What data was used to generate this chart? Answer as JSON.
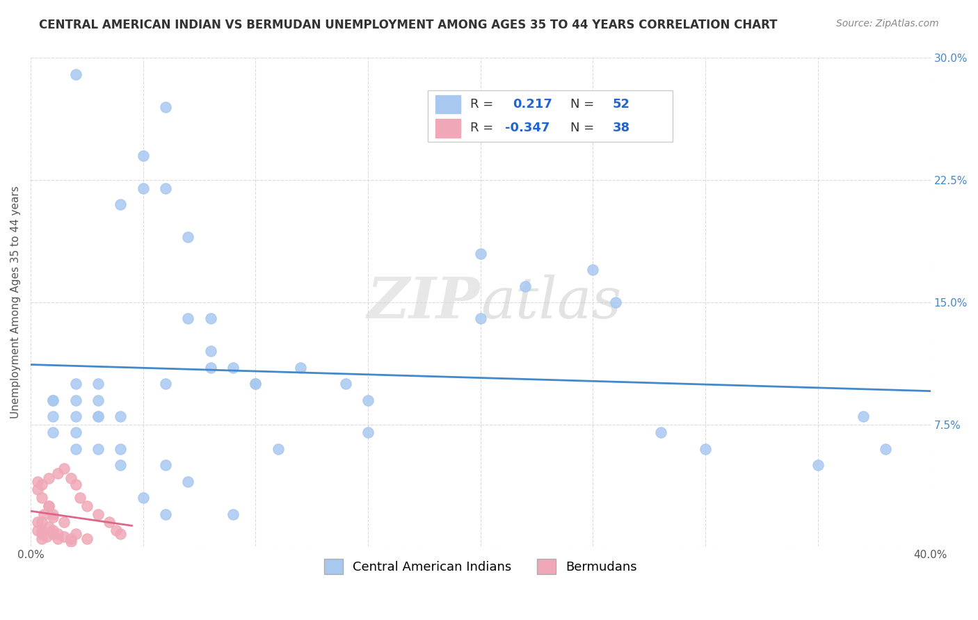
{
  "title": "CENTRAL AMERICAN INDIAN VS BERMUDAN UNEMPLOYMENT AMONG AGES 35 TO 44 YEARS CORRELATION CHART",
  "source": "Source: ZipAtlas.com",
  "ylabel": "Unemployment Among Ages 35 to 44 years",
  "xlim": [
    0.0,
    0.4
  ],
  "ylim": [
    0.0,
    0.3
  ],
  "xticks": [
    0.0,
    0.05,
    0.1,
    0.15,
    0.2,
    0.25,
    0.3,
    0.35,
    0.4
  ],
  "yticks": [
    0.0,
    0.075,
    0.15,
    0.225,
    0.3
  ],
  "xticklabels": [
    "0.0%",
    "",
    "",
    "",
    "",
    "",
    "",
    "",
    "40.0%"
  ],
  "yticklabels": [
    "",
    "7.5%",
    "15.0%",
    "22.5%",
    "30.0%"
  ],
  "blue_color": "#a8c8f0",
  "pink_color": "#f0a8b8",
  "blue_line_color": "#4488cc",
  "pink_line_color": "#dd6688",
  "watermark_zip": "ZIP",
  "watermark_atlas": "atlas",
  "blue_R": 0.217,
  "blue_N": 52,
  "pink_R": -0.347,
  "pink_N": 38,
  "blue_scatter_x": [
    0.02,
    0.05,
    0.04,
    0.05,
    0.06,
    0.07,
    0.08,
    0.08,
    0.09,
    0.06,
    0.03,
    0.03,
    0.04,
    0.02,
    0.01,
    0.01,
    0.02,
    0.03,
    0.03,
    0.02,
    0.01,
    0.01,
    0.02,
    0.02,
    0.03,
    0.04,
    0.04,
    0.06,
    0.07,
    0.08,
    0.09,
    0.1,
    0.12,
    0.14,
    0.15,
    0.2,
    0.25,
    0.28,
    0.3,
    0.35,
    0.38,
    0.37,
    0.26,
    0.1,
    0.11,
    0.06,
    0.07,
    0.05,
    0.06,
    0.15,
    0.22,
    0.2
  ],
  "blue_scatter_y": [
    0.29,
    0.24,
    0.21,
    0.22,
    0.22,
    0.14,
    0.14,
    0.12,
    0.11,
    0.1,
    0.1,
    0.09,
    0.08,
    0.09,
    0.09,
    0.09,
    0.1,
    0.08,
    0.08,
    0.08,
    0.08,
    0.07,
    0.07,
    0.06,
    0.06,
    0.06,
    0.05,
    0.27,
    0.19,
    0.11,
    0.02,
    0.1,
    0.11,
    0.1,
    0.09,
    0.14,
    0.17,
    0.07,
    0.06,
    0.05,
    0.06,
    0.08,
    0.15,
    0.1,
    0.06,
    0.05,
    0.04,
    0.03,
    0.02,
    0.07,
    0.16,
    0.18
  ],
  "pink_scatter_x": [
    0.005,
    0.005,
    0.005,
    0.008,
    0.01,
    0.012,
    0.01,
    0.008,
    0.006,
    0.003,
    0.003,
    0.005,
    0.007,
    0.01,
    0.012,
    0.015,
    0.018,
    0.02,
    0.015,
    0.01,
    0.008,
    0.005,
    0.003,
    0.003,
    0.005,
    0.008,
    0.012,
    0.015,
    0.018,
    0.02,
    0.022,
    0.025,
    0.03,
    0.035,
    0.038,
    0.04,
    0.025,
    0.018
  ],
  "pink_scatter_y": [
    0.005,
    0.01,
    0.015,
    0.012,
    0.008,
    0.005,
    0.018,
    0.025,
    0.02,
    0.015,
    0.01,
    0.008,
    0.006,
    0.01,
    0.008,
    0.006,
    0.005,
    0.008,
    0.015,
    0.02,
    0.025,
    0.03,
    0.035,
    0.04,
    0.038,
    0.042,
    0.045,
    0.048,
    0.042,
    0.038,
    0.03,
    0.025,
    0.02,
    0.015,
    0.01,
    0.008,
    0.005,
    0.003
  ]
}
